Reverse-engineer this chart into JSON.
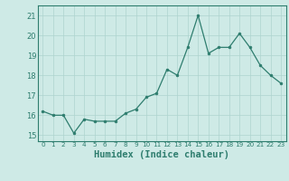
{
  "x": [
    0,
    1,
    2,
    3,
    4,
    5,
    6,
    7,
    8,
    9,
    10,
    11,
    12,
    13,
    14,
    15,
    16,
    17,
    18,
    19,
    20,
    21,
    22,
    23
  ],
  "y": [
    16.2,
    16.0,
    16.0,
    15.1,
    15.8,
    15.7,
    15.7,
    15.7,
    16.1,
    16.3,
    16.9,
    17.1,
    18.3,
    18.0,
    19.4,
    21.0,
    19.1,
    19.4,
    19.4,
    20.1,
    19.4,
    18.5,
    18.0,
    17.6
  ],
  "xlabel": "Humidex (Indice chaleur)",
  "xlim": [
    -0.5,
    23.5
  ],
  "ylim": [
    14.7,
    21.5
  ],
  "yticks": [
    15,
    16,
    17,
    18,
    19,
    20,
    21
  ],
  "xticks": [
    0,
    1,
    2,
    3,
    4,
    5,
    6,
    7,
    8,
    9,
    10,
    11,
    12,
    13,
    14,
    15,
    16,
    17,
    18,
    19,
    20,
    21,
    22,
    23
  ],
  "line_color": "#2e7d6e",
  "bg_color": "#ceeae6",
  "grid_color": "#aed4ce",
  "text_color": "#2e7d6e"
}
